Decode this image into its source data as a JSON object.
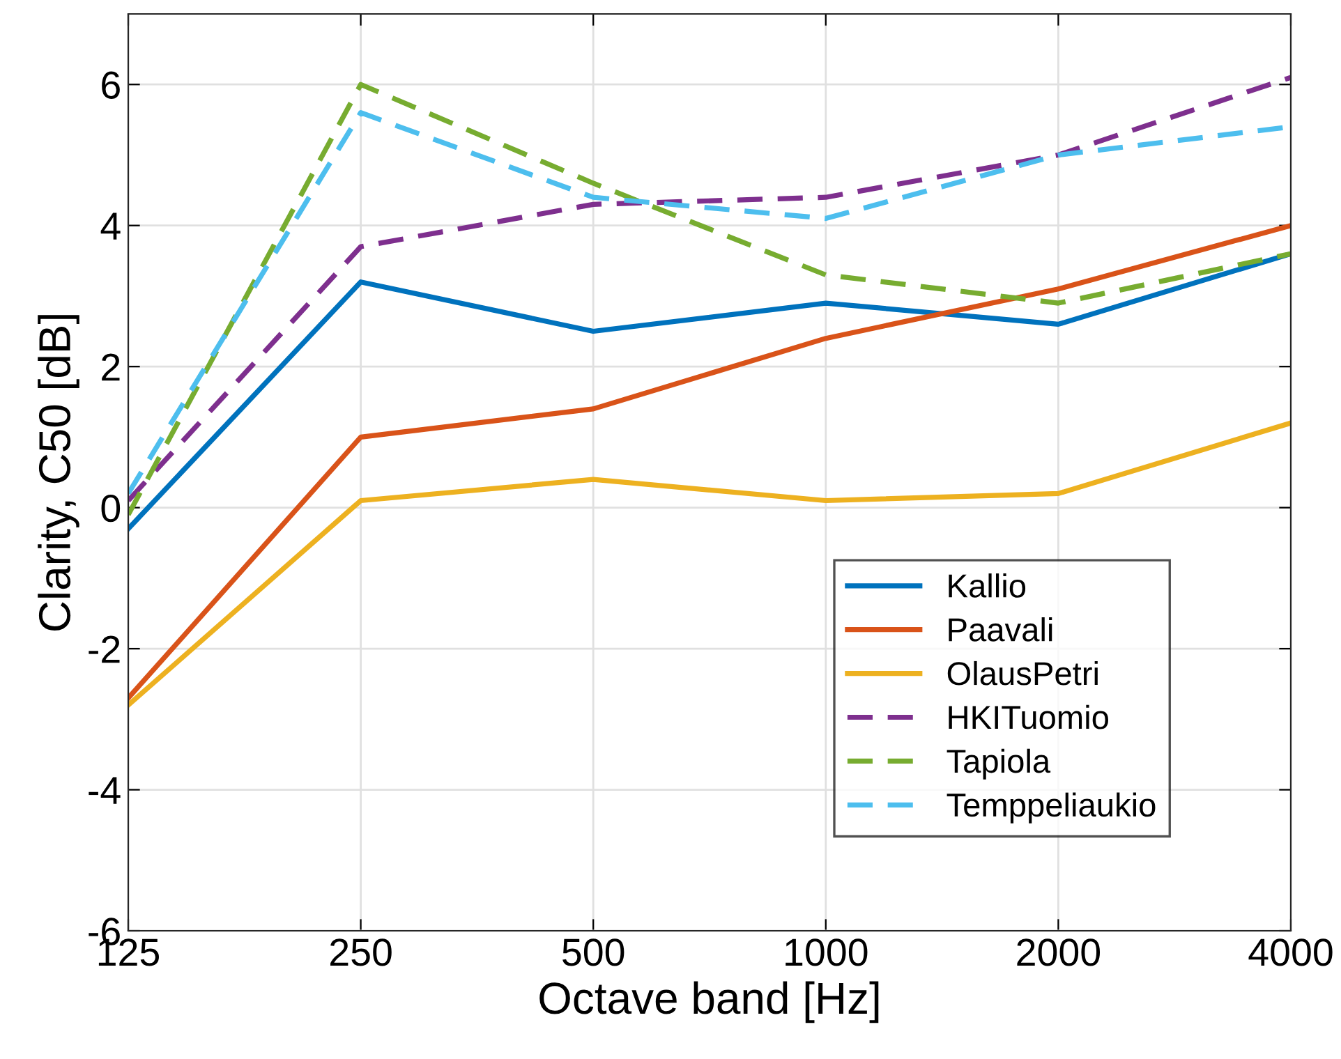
{
  "chart_data": {
    "type": "line",
    "xlabel": "Octave band [Hz]",
    "ylabel": "Clarity, C50 [dB]",
    "categories": [
      "125",
      "250",
      "500",
      "1000",
      "2000",
      "4000"
    ],
    "series": [
      {
        "name": "Kallio",
        "color": "#0072bd",
        "line_style": "solid",
        "values": [
          -0.3,
          3.2,
          2.5,
          2.9,
          2.6,
          3.6
        ]
      },
      {
        "name": "Paavali",
        "color": "#d95319",
        "line_style": "solid",
        "values": [
          -2.7,
          1.0,
          1.4,
          2.4,
          3.1,
          4.0
        ]
      },
      {
        "name": "OlausPetri",
        "color": "#edb120",
        "line_style": "solid",
        "values": [
          -2.8,
          0.1,
          0.4,
          0.1,
          0.2,
          1.2
        ]
      },
      {
        "name": "HKITuomio",
        "color": "#7e2f8e",
        "line_style": "dashed",
        "values": [
          0.1,
          3.7,
          4.3,
          4.4,
          5.0,
          6.1
        ]
      },
      {
        "name": "Tapiola",
        "color": "#77ac30",
        "line_style": "dashed",
        "values": [
          -0.1,
          6.0,
          4.6,
          3.3,
          2.9,
          3.6
        ]
      },
      {
        "name": "Temppeliaukio",
        "color": "#4dbeee",
        "line_style": "dashed",
        "values": [
          0.2,
          5.6,
          4.4,
          4.1,
          5.0,
          5.4
        ]
      }
    ],
    "ylim": [
      -6,
      7
    ],
    "yticks": [
      -6,
      -4,
      -2,
      0,
      2,
      4,
      6
    ],
    "grid": true,
    "legend": "bottom right",
    "marker": "none"
  }
}
